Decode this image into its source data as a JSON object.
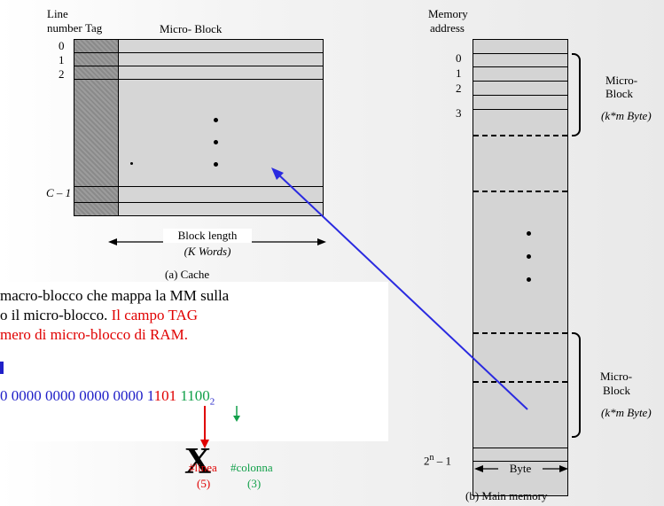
{
  "cache": {
    "header_line": "Line",
    "header_number": "number",
    "header_tag": "Tag",
    "header_block": "Micro- Block",
    "line_labels": [
      "0",
      "1",
      "2",
      "C – 1"
    ],
    "block_length_label": "Block length",
    "block_length_unit": "(K Words)",
    "caption": "(a) Cache"
  },
  "memory": {
    "header_memory": "Memory",
    "header_address": "address",
    "address_labels": [
      "0",
      "1",
      "2",
      "3"
    ],
    "last_address": "2",
    "last_address_exp": "n",
    "last_address_suffix": " – 1",
    "micro_block_label_1": "Micro-",
    "micro_block_label_2": "Block",
    "micro_block_size": "(k*m Byte)",
    "byte_label": "Byte",
    "caption": "(b) Main memory"
  },
  "text": {
    "line1": "macro-blocco che mappa la MM sulla",
    "line2_black": "o il micro-blocco.",
    "line2_red": " Il campo TAG",
    "line3_red": "mero di micro-blocco di RAM.",
    "bits_blue_prefix": "0 0000 0000  0000 0000 1",
    "bits_red": "101",
    "bits_space": " ",
    "bits_green": "1100",
    "bits_sub": "2",
    "x_mark": "X",
    "linea_label": "#linea",
    "linea_num": "(5)",
    "colonna_label": "#colonna",
    "colonna_num": "(3)"
  },
  "colors": {
    "red": "#e00000",
    "blue": "#2020c8",
    "green": "#12a04a"
  }
}
